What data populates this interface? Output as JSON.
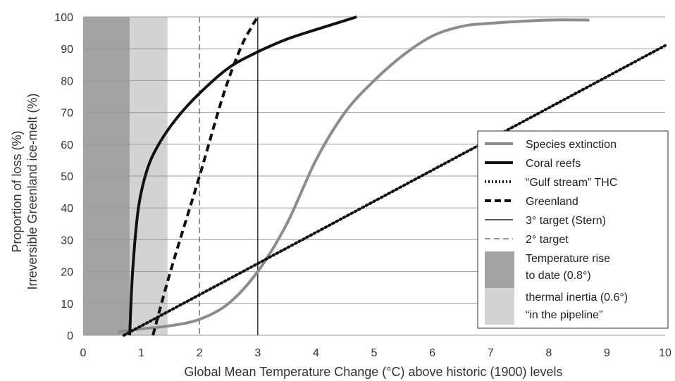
{
  "chart_data": {
    "type": "line",
    "xlabel": "Global Mean Temperature Change (°C) above historic (1900) levels",
    "ylabel_line1": "Proportion of loss (%)",
    "ylabel_line2": "Irreversible Greenland ice-melt (%)",
    "xlim": [
      0,
      10
    ],
    "ylim": [
      0,
      100
    ],
    "x_ticks": [
      "0",
      "1",
      "2",
      "3",
      "4",
      "5",
      "6",
      "7",
      "8",
      "9",
      "10"
    ],
    "y_ticks": [
      "0",
      "10",
      "20",
      "30",
      "40",
      "50",
      "60",
      "70",
      "80",
      "90",
      "100"
    ],
    "grid": "horizontal",
    "legend_position": "right",
    "bands": [
      {
        "name": "Temperature rise to date (0.8°)",
        "from": 0,
        "to": 0.8,
        "color": "#a3a3a3"
      },
      {
        "name": "thermal inertia (0.6°) \"in the pipeline\"",
        "from": 0.8,
        "to": 1.45,
        "color": "#d3d3d3"
      }
    ],
    "vlines": [
      {
        "name": "3° target (Stern)",
        "x": 3,
        "style": "solid"
      },
      {
        "name": "2° target",
        "x": 2,
        "style": "dashed"
      }
    ],
    "series": [
      {
        "name": "Species extinction",
        "style": "solid-gray",
        "points": [
          [
            0.6,
            1
          ],
          [
            1,
            2
          ],
          [
            1.5,
            3
          ],
          [
            2,
            5
          ],
          [
            2.5,
            10
          ],
          [
            3,
            20
          ],
          [
            3.5,
            35
          ],
          [
            4,
            55
          ],
          [
            4.5,
            70
          ],
          [
            5,
            80
          ],
          [
            5.5,
            88
          ],
          [
            6,
            94
          ],
          [
            6.5,
            97
          ],
          [
            7,
            98
          ],
          [
            8,
            99
          ],
          [
            8.7,
            99
          ]
        ]
      },
      {
        "name": "Coral reefs",
        "style": "solid-black",
        "points": [
          [
            0.8,
            0
          ],
          [
            0.85,
            20
          ],
          [
            0.95,
            40
          ],
          [
            1.1,
            52
          ],
          [
            1.3,
            60
          ],
          [
            1.6,
            68
          ],
          [
            2,
            76
          ],
          [
            2.5,
            84
          ],
          [
            3,
            89
          ],
          [
            3.5,
            93
          ],
          [
            4,
            96
          ],
          [
            4.7,
            100
          ]
        ]
      },
      {
        "name": "\"Gulf stream\" THC",
        "style": "dotted",
        "points": [
          [
            0.7,
            0
          ],
          [
            10,
            91
          ]
        ]
      },
      {
        "name": "Greenland",
        "style": "dashed",
        "points": [
          [
            1.2,
            0
          ],
          [
            1.5,
            20
          ],
          [
            2,
            50
          ],
          [
            2.4,
            75
          ],
          [
            2.7,
            90
          ],
          [
            2.9,
            97
          ],
          [
            3,
            100
          ]
        ]
      }
    ]
  },
  "legend": {
    "items": [
      {
        "label": "Species extinction"
      },
      {
        "label": "Coral reefs"
      },
      {
        "label": "“Gulf stream” THC"
      },
      {
        "label": "Greenland"
      },
      {
        "label": "3° target (Stern)"
      },
      {
        "label": "2° target"
      },
      {
        "label_lines": [
          "Temperature rise",
          "to date (0.8°)"
        ]
      },
      {
        "label_lines": [
          "thermal inertia (0.6°)",
          "“in the pipeline”"
        ]
      }
    ]
  },
  "colors": {
    "band_dark": "#a3a3a3",
    "band_light": "#d3d3d3",
    "grid": "#999999",
    "species": "#8c8c8c",
    "black": "#111111"
  }
}
